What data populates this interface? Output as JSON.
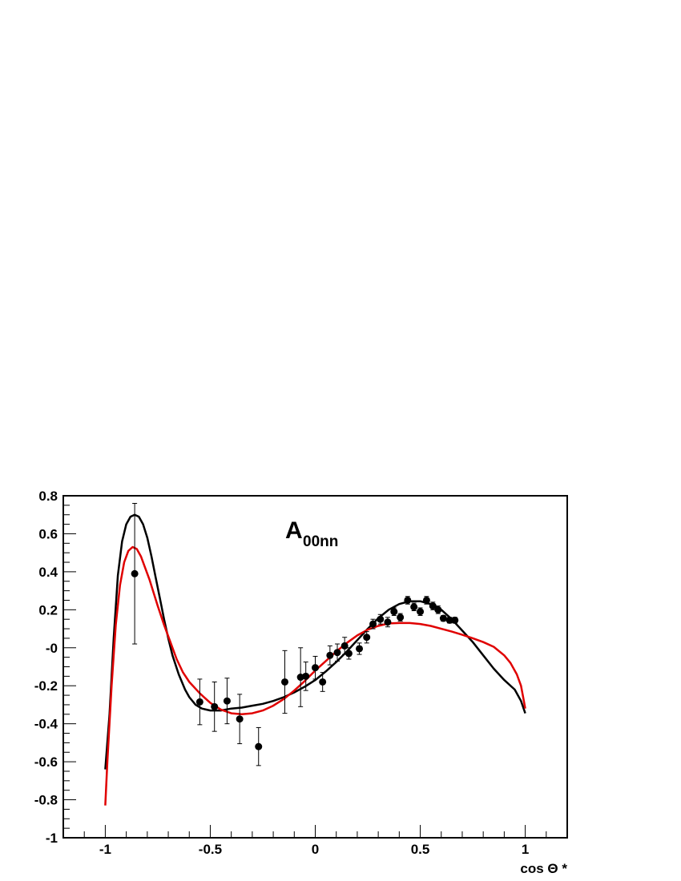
{
  "chart_data": {
    "type": "scatter",
    "title": "",
    "annotation": {
      "main": "A",
      "subscript": "00nn"
    },
    "xlabel": "cos Θ *",
    "ylabel": "",
    "xlim": [
      -1.2,
      1.2
    ],
    "ylim": [
      -1.0,
      0.8
    ],
    "x_ticks": [
      -1,
      -0.5,
      0,
      0.5,
      1
    ],
    "x_tick_labels": [
      "-1",
      "-0.5",
      "0",
      "0.5",
      "1"
    ],
    "y_ticks": [
      -1,
      -0.8,
      -0.6,
      -0.4,
      -0.2,
      0,
      0.2,
      0.4,
      0.6,
      0.8
    ],
    "y_tick_labels": [
      "-1",
      "-0.8",
      "-0.6",
      "-0.4",
      "-0.2",
      "-0",
      "0.2",
      "0.4",
      "0.6",
      "0.8"
    ],
    "grid": false,
    "legend": "none",
    "series": [
      {
        "kind": "points",
        "color": "#000000",
        "points": [
          {
            "x": -0.86,
            "y": 0.39,
            "err": 0.37
          },
          {
            "x": -0.55,
            "y": -0.285,
            "err": 0.12
          },
          {
            "x": -0.48,
            "y": -0.31,
            "err": 0.13
          },
          {
            "x": -0.42,
            "y": -0.28,
            "err": 0.12
          },
          {
            "x": -0.36,
            "y": -0.375,
            "err": 0.13
          },
          {
            "x": -0.27,
            "y": -0.52,
            "err": 0.1
          },
          {
            "x": -0.145,
            "y": -0.18,
            "err": 0.165
          },
          {
            "x": -0.07,
            "y": -0.155,
            "err": 0.155
          },
          {
            "x": -0.045,
            "y": -0.15,
            "err": 0.075
          },
          {
            "x": 0.0,
            "y": -0.105,
            "err": 0.06
          },
          {
            "x": 0.035,
            "y": -0.18,
            "err": 0.05
          },
          {
            "x": 0.07,
            "y": -0.04,
            "err": 0.05
          },
          {
            "x": 0.105,
            "y": -0.025,
            "err": 0.045
          },
          {
            "x": 0.14,
            "y": 0.01,
            "err": 0.045
          },
          {
            "x": 0.16,
            "y": -0.03,
            "err": 0.03
          },
          {
            "x": 0.21,
            "y": -0.005,
            "err": 0.03
          },
          {
            "x": 0.245,
            "y": 0.055,
            "err": 0.03
          },
          {
            "x": 0.275,
            "y": 0.125,
            "err": 0.025
          },
          {
            "x": 0.31,
            "y": 0.15,
            "err": 0.025
          },
          {
            "x": 0.345,
            "y": 0.135,
            "err": 0.025
          },
          {
            "x": 0.375,
            "y": 0.19,
            "err": 0.02
          },
          {
            "x": 0.405,
            "y": 0.16,
            "err": 0.02
          },
          {
            "x": 0.44,
            "y": 0.25,
            "err": 0.02
          },
          {
            "x": 0.47,
            "y": 0.215,
            "err": 0.02
          },
          {
            "x": 0.5,
            "y": 0.19,
            "err": 0.02
          },
          {
            "x": 0.53,
            "y": 0.25,
            "err": 0.02
          },
          {
            "x": 0.56,
            "y": 0.22,
            "err": 0.02
          },
          {
            "x": 0.585,
            "y": 0.2,
            "err": 0.02
          },
          {
            "x": 0.61,
            "y": 0.155,
            "err": 0.015
          },
          {
            "x": 0.64,
            "y": 0.145,
            "err": 0.015
          },
          {
            "x": 0.665,
            "y": 0.145,
            "err": 0.015
          }
        ]
      },
      {
        "kind": "line",
        "color": "#000000",
        "x": [
          -1.0,
          -0.98,
          -0.96,
          -0.94,
          -0.92,
          -0.9,
          -0.88,
          -0.86,
          -0.84,
          -0.82,
          -0.8,
          -0.78,
          -0.76,
          -0.74,
          -0.72,
          -0.7,
          -0.68,
          -0.65,
          -0.62,
          -0.6,
          -0.57,
          -0.54,
          -0.5,
          -0.45,
          -0.4,
          -0.35,
          -0.3,
          -0.25,
          -0.2,
          -0.15,
          -0.1,
          -0.05,
          0.0,
          0.05,
          0.1,
          0.15,
          0.2,
          0.25,
          0.3,
          0.35,
          0.4,
          0.45,
          0.5,
          0.55,
          0.6,
          0.65,
          0.7,
          0.75,
          0.8,
          0.85,
          0.9,
          0.95,
          0.98,
          1.0
        ],
        "y": [
          -0.64,
          -0.35,
          0.05,
          0.38,
          0.56,
          0.65,
          0.69,
          0.7,
          0.69,
          0.65,
          0.58,
          0.48,
          0.37,
          0.26,
          0.15,
          0.05,
          -0.04,
          -0.14,
          -0.22,
          -0.26,
          -0.3,
          -0.32,
          -0.33,
          -0.33,
          -0.32,
          -0.315,
          -0.305,
          -0.295,
          -0.28,
          -0.26,
          -0.235,
          -0.205,
          -0.17,
          -0.125,
          -0.075,
          -0.02,
          0.04,
          0.1,
          0.155,
          0.2,
          0.23,
          0.245,
          0.245,
          0.23,
          0.2,
          0.15,
          0.09,
          0.03,
          -0.04,
          -0.11,
          -0.17,
          -0.22,
          -0.28,
          -0.345
        ]
      },
      {
        "kind": "line",
        "color": "#e00000",
        "x": [
          -1.0,
          -0.99,
          -0.97,
          -0.95,
          -0.93,
          -0.91,
          -0.89,
          -0.87,
          -0.85,
          -0.83,
          -0.81,
          -0.79,
          -0.77,
          -0.75,
          -0.72,
          -0.69,
          -0.66,
          -0.63,
          -0.6,
          -0.55,
          -0.5,
          -0.45,
          -0.4,
          -0.35,
          -0.3,
          -0.25,
          -0.2,
          -0.15,
          -0.1,
          -0.05,
          0.0,
          0.05,
          0.1,
          0.15,
          0.2,
          0.25,
          0.3,
          0.35,
          0.4,
          0.45,
          0.5,
          0.55,
          0.6,
          0.65,
          0.7,
          0.75,
          0.8,
          0.85,
          0.9,
          0.93,
          0.96,
          0.98,
          0.99,
          1.0
        ],
        "y": [
          -0.83,
          -0.6,
          -0.2,
          0.12,
          0.33,
          0.45,
          0.51,
          0.53,
          0.52,
          0.48,
          0.42,
          0.36,
          0.29,
          0.22,
          0.12,
          0.03,
          -0.06,
          -0.13,
          -0.18,
          -0.24,
          -0.29,
          -0.325,
          -0.345,
          -0.35,
          -0.345,
          -0.33,
          -0.305,
          -0.27,
          -0.225,
          -0.175,
          -0.12,
          -0.07,
          -0.02,
          0.025,
          0.065,
          0.095,
          0.115,
          0.128,
          0.13,
          0.13,
          0.125,
          0.115,
          0.1,
          0.085,
          0.068,
          0.05,
          0.03,
          0.005,
          -0.04,
          -0.08,
          -0.14,
          -0.2,
          -0.26,
          -0.32
        ]
      }
    ]
  }
}
